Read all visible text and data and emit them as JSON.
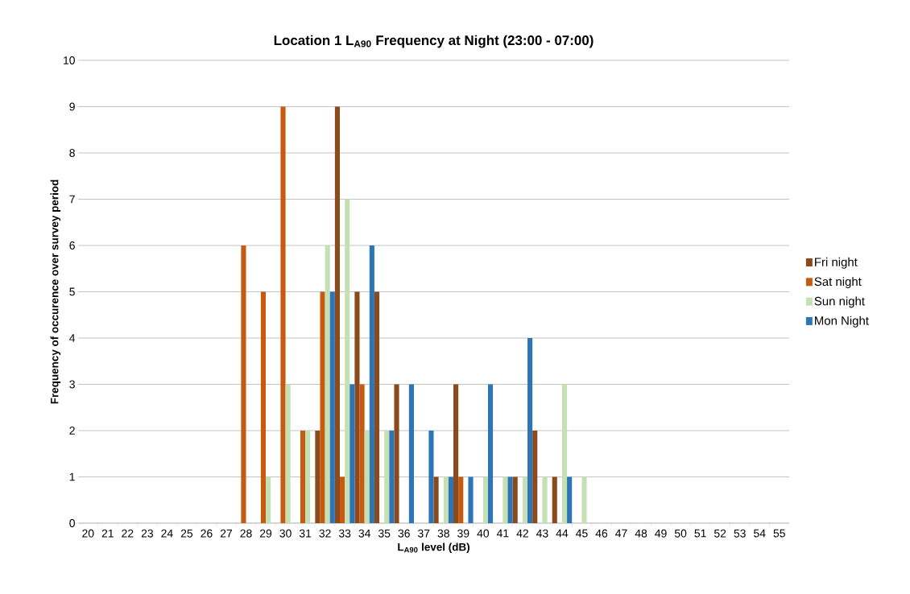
{
  "chart_data": {
    "type": "bar",
    "title": "Location 1 L$_{A90}$ Frequency at Night (23:00 - 07:00)",
    "xlabel": "L$_{A90}$ level (dB)",
    "ylabel": "Frequency of occurence over survey period",
    "categories": [
      "20",
      "21",
      "22",
      "23",
      "24",
      "25",
      "26",
      "27",
      "28",
      "29",
      "30",
      "31",
      "32",
      "33",
      "34",
      "35",
      "36",
      "37",
      "38",
      "39",
      "40",
      "41",
      "42",
      "43",
      "44",
      "45",
      "46",
      "47",
      "48",
      "49",
      "50",
      "51",
      "52",
      "53",
      "54",
      "55"
    ],
    "series": [
      {
        "name": "Fri night",
        "color": "#8b4a1c",
        "values": [
          0,
          0,
          0,
          0,
          0,
          0,
          0,
          0,
          0,
          0,
          0,
          0,
          2,
          9,
          5,
          5,
          3,
          0,
          1,
          3,
          0,
          0,
          1,
          2,
          1,
          0,
          0,
          0,
          0,
          0,
          0,
          0,
          0,
          0,
          0,
          0
        ]
      },
      {
        "name": "Sat night",
        "color": "#c65a11",
        "values": [
          0,
          0,
          0,
          0,
          0,
          0,
          0,
          0,
          6,
          5,
          9,
          2,
          5,
          1,
          3,
          0,
          0,
          0,
          0,
          1,
          0,
          0,
          0,
          0,
          0,
          0,
          0,
          0,
          0,
          0,
          0,
          0,
          0,
          0,
          0,
          0
        ]
      },
      {
        "name": "Sun night",
        "color": "#c5e0b4",
        "values": [
          0,
          0,
          0,
          0,
          0,
          0,
          0,
          0,
          0,
          1,
          3,
          2,
          6,
          7,
          2,
          2,
          0,
          0,
          1,
          0,
          1,
          1,
          1,
          1,
          3,
          1,
          0,
          0,
          0,
          0,
          0,
          0,
          0,
          0,
          0,
          0
        ]
      },
      {
        "name": "Mon Night",
        "color": "#2e75b6",
        "values": [
          0,
          0,
          0,
          0,
          0,
          0,
          0,
          0,
          0,
          0,
          0,
          0,
          5,
          3,
          6,
          2,
          3,
          2,
          1,
          1,
          3,
          1,
          4,
          0,
          1,
          0,
          0,
          0,
          0,
          0,
          0,
          0,
          0,
          0,
          0,
          0
        ]
      }
    ],
    "ylim": [
      0,
      10
    ],
    "yticks": [
      0,
      1,
      2,
      3,
      4,
      5,
      6,
      7,
      8,
      9,
      10
    ],
    "grid": "y",
    "legend": "right"
  }
}
